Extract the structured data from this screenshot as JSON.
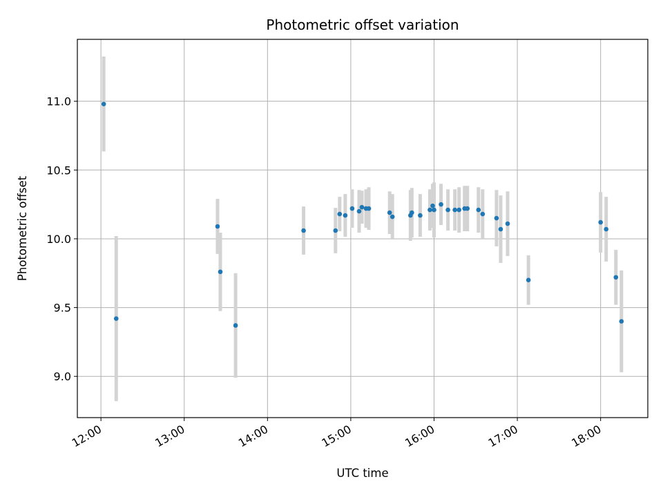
{
  "chart_data": {
    "type": "scatter",
    "title": "Photometric offset variation",
    "xlabel": "UTC time",
    "ylabel": "Photometric offset",
    "xlim": [
      "11:43",
      "18:34"
    ],
    "ylim": [
      8.7,
      11.45
    ],
    "x_ticks": [
      "12:00",
      "13:00",
      "14:00",
      "15:00",
      "16:00",
      "17:00",
      "18:00"
    ],
    "y_ticks": [
      "9.0",
      "9.5",
      "10.0",
      "10.5",
      "11.0"
    ],
    "grid": true,
    "marker_color": "#1f77b4",
    "errorbar_color": "#d3d3d3",
    "points": [
      {
        "time": "12:02",
        "y": 10.98,
        "err": 0.345
      },
      {
        "time": "12:11",
        "y": 9.42,
        "err": 0.6
      },
      {
        "time": "13:24",
        "y": 10.09,
        "err": 0.2
      },
      {
        "time": "13:26",
        "y": 9.76,
        "err": 0.285
      },
      {
        "time": "13:37",
        "y": 9.37,
        "err": 0.38
      },
      {
        "time": "14:26",
        "y": 10.06,
        "err": 0.175
      },
      {
        "time": "14:49",
        "y": 10.06,
        "err": 0.165
      },
      {
        "time": "14:52",
        "y": 10.18,
        "err": 0.125
      },
      {
        "time": "14:56",
        "y": 10.17,
        "err": 0.155
      },
      {
        "time": "15:01",
        "y": 10.22,
        "err": 0.14
      },
      {
        "time": "15:06",
        "y": 10.2,
        "err": 0.155
      },
      {
        "time": "15:08",
        "y": 10.23,
        "err": 0.12
      },
      {
        "time": "15:11",
        "y": 10.22,
        "err": 0.14
      },
      {
        "time": "15:13",
        "y": 10.22,
        "err": 0.155
      },
      {
        "time": "15:28",
        "y": 10.19,
        "err": 0.155
      },
      {
        "time": "15:30",
        "y": 10.16,
        "err": 0.165
      },
      {
        "time": "15:43",
        "y": 10.17,
        "err": 0.185
      },
      {
        "time": "15:44",
        "y": 10.19,
        "err": 0.18
      },
      {
        "time": "15:50",
        "y": 10.17,
        "err": 0.155
      },
      {
        "time": "15:57",
        "y": 10.21,
        "err": 0.15
      },
      {
        "time": "15:59",
        "y": 10.24,
        "err": 0.16
      },
      {
        "time": "16:00",
        "y": 10.21,
        "err": 0.2
      },
      {
        "time": "16:05",
        "y": 10.25,
        "err": 0.15
      },
      {
        "time": "16:10",
        "y": 10.21,
        "err": 0.15
      },
      {
        "time": "16:15",
        "y": 10.21,
        "err": 0.15
      },
      {
        "time": "16:18",
        "y": 10.21,
        "err": 0.165
      },
      {
        "time": "16:22",
        "y": 10.22,
        "err": 0.165
      },
      {
        "time": "16:24",
        "y": 10.22,
        "err": 0.165
      },
      {
        "time": "16:32",
        "y": 10.21,
        "err": 0.165
      },
      {
        "time": "16:35",
        "y": 10.18,
        "err": 0.18
      },
      {
        "time": "16:45",
        "y": 10.15,
        "err": 0.205
      },
      {
        "time": "16:48",
        "y": 10.07,
        "err": 0.245
      },
      {
        "time": "16:53",
        "y": 10.11,
        "err": 0.235
      },
      {
        "time": "17:08",
        "y": 9.7,
        "err": 0.18
      },
      {
        "time": "18:00",
        "y": 10.12,
        "err": 0.22
      },
      {
        "time": "18:04",
        "y": 10.07,
        "err": 0.235
      },
      {
        "time": "18:11",
        "y": 9.72,
        "err": 0.2
      },
      {
        "time": "18:15",
        "y": 9.4,
        "err": 0.37
      }
    ]
  }
}
